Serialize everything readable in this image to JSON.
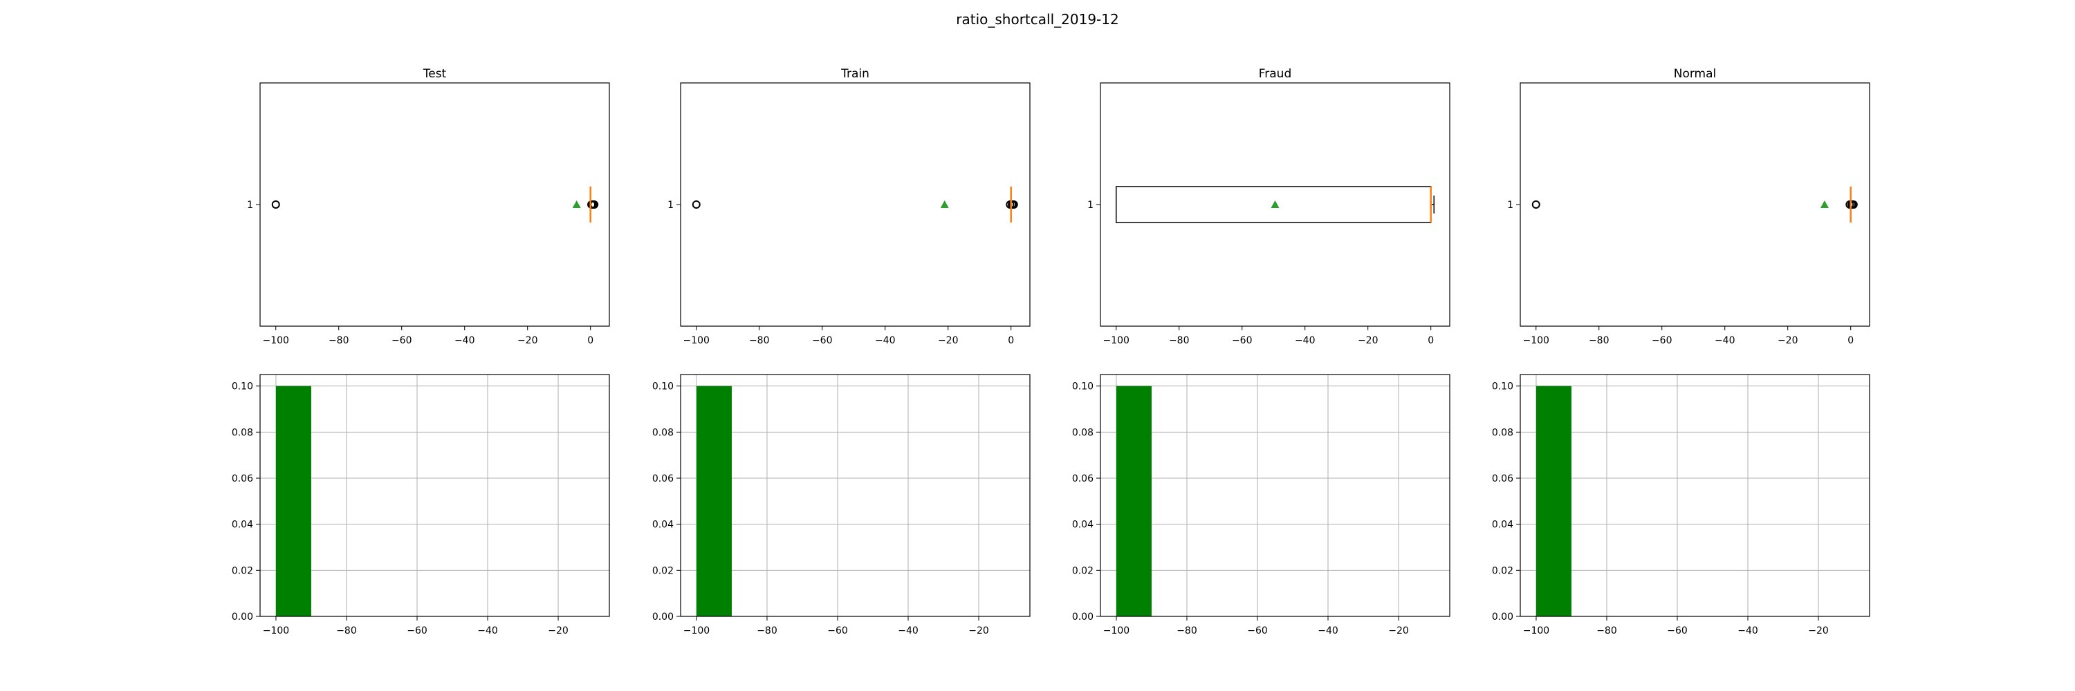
{
  "figure_title": "ratio_shortcall_2019-12",
  "colors": {
    "mean_marker": "#2ca02c",
    "median_line": "#ff7f0e",
    "hist_bar": "#008000",
    "grid": "#b0b0b0"
  },
  "chart_data": [
    {
      "type": "boxplot",
      "title": "Test",
      "orientation": "horizontal",
      "ytick_labels": [
        "1"
      ],
      "xlim": [
        -105,
        6
      ],
      "xticks": [
        -100,
        -80,
        -60,
        -40,
        -20,
        0
      ],
      "xtick_labels": [
        "−100",
        "−80",
        "−60",
        "−40",
        "−20",
        "0"
      ],
      "box": {
        "q1": 0,
        "median": 0,
        "q3": 0,
        "whisker_low": 0,
        "whisker_high": 0,
        "mean": -4.4
      },
      "outliers": [
        -100,
        0.3,
        0.6,
        0.9,
        1.2
      ]
    },
    {
      "type": "boxplot",
      "title": "Train",
      "orientation": "horizontal",
      "ytick_labels": [
        "1"
      ],
      "xlim": [
        -105,
        6
      ],
      "xticks": [
        -100,
        -80,
        -60,
        -40,
        -20,
        0
      ],
      "xtick_labels": [
        "−100",
        "−80",
        "−60",
        "−40",
        "−20",
        "0"
      ],
      "box": {
        "q1": 0,
        "median": 0,
        "q3": 0,
        "whisker_low": 0,
        "whisker_high": 0,
        "mean": -21.1
      },
      "outliers": [
        -100,
        -0.3,
        0.3,
        0.6,
        0.9
      ]
    },
    {
      "type": "boxplot",
      "title": "Fraud",
      "orientation": "horizontal",
      "ytick_labels": [
        "1"
      ],
      "xlim": [
        -105,
        6
      ],
      "xticks": [
        -100,
        -80,
        -60,
        -40,
        -20,
        0
      ],
      "xtick_labels": [
        "−100",
        "−80",
        "−60",
        "−40",
        "−20",
        "0"
      ],
      "box": {
        "q1": -100,
        "median": 0,
        "q3": 0,
        "whisker_low": -100,
        "whisker_high": 1,
        "mean": -49.5
      },
      "outliers": []
    },
    {
      "type": "boxplot",
      "title": "Normal",
      "orientation": "horizontal",
      "ytick_labels": [
        "1"
      ],
      "xlim": [
        -105,
        6
      ],
      "xticks": [
        -100,
        -80,
        -60,
        -40,
        -20,
        0
      ],
      "xtick_labels": [
        "−100",
        "−80",
        "−60",
        "−40",
        "−20",
        "0"
      ],
      "box": {
        "q1": 0,
        "median": 0,
        "q3": 0,
        "whisker_low": 0,
        "whisker_high": 0,
        "mean": -8.3
      },
      "outliers": [
        -100,
        -0.3,
        0.3,
        0.6,
        0.9
      ]
    },
    {
      "type": "histogram",
      "title": "",
      "density": true,
      "xlim": [
        -104.5,
        -5.5
      ],
      "ylim": [
        0,
        0.105
      ],
      "xticks": [
        -100,
        -80,
        -60,
        -40,
        -20
      ],
      "xtick_labels": [
        "−100",
        "−80",
        "−60",
        "−40",
        "−20"
      ],
      "yticks": [
        0,
        0.02,
        0.04,
        0.06,
        0.08,
        0.1
      ],
      "ytick_labels": [
        "0.00",
        "0.02",
        "0.04",
        "0.06",
        "0.08",
        "0.10"
      ],
      "grid": true,
      "bins": [
        {
          "left": -100,
          "right": -90,
          "value": 0.1
        }
      ]
    },
    {
      "type": "histogram",
      "title": "",
      "density": true,
      "xlim": [
        -104.5,
        -5.5
      ],
      "ylim": [
        0,
        0.105
      ],
      "xticks": [
        -100,
        -80,
        -60,
        -40,
        -20
      ],
      "xtick_labels": [
        "−100",
        "−80",
        "−60",
        "−40",
        "−20"
      ],
      "yticks": [
        0,
        0.02,
        0.04,
        0.06,
        0.08,
        0.1
      ],
      "ytick_labels": [
        "0.00",
        "0.02",
        "0.04",
        "0.06",
        "0.08",
        "0.10"
      ],
      "grid": true,
      "bins": [
        {
          "left": -100,
          "right": -90,
          "value": 0.1
        }
      ]
    },
    {
      "type": "histogram",
      "title": "",
      "density": true,
      "xlim": [
        -104.5,
        -5.5
      ],
      "ylim": [
        0,
        0.105
      ],
      "xticks": [
        -100,
        -80,
        -60,
        -40,
        -20
      ],
      "xtick_labels": [
        "−100",
        "−80",
        "−60",
        "−40",
        "−20"
      ],
      "yticks": [
        0,
        0.02,
        0.04,
        0.06,
        0.08,
        0.1
      ],
      "ytick_labels": [
        "0.00",
        "0.02",
        "0.04",
        "0.06",
        "0.08",
        "0.10"
      ],
      "grid": true,
      "bins": [
        {
          "left": -100,
          "right": -90,
          "value": 0.1
        }
      ]
    },
    {
      "type": "histogram",
      "title": "",
      "density": true,
      "xlim": [
        -104.5,
        -5.5
      ],
      "ylim": [
        0,
        0.105
      ],
      "xticks": [
        -100,
        -80,
        -60,
        -40,
        -20
      ],
      "xtick_labels": [
        "−100",
        "−80",
        "−60",
        "−40",
        "−20"
      ],
      "yticks": [
        0,
        0.02,
        0.04,
        0.06,
        0.08,
        0.1
      ],
      "ytick_labels": [
        "0.00",
        "0.02",
        "0.04",
        "0.06",
        "0.08",
        "0.10"
      ],
      "grid": true,
      "bins": [
        {
          "left": -100,
          "right": -90,
          "value": 0.1
        }
      ]
    }
  ]
}
